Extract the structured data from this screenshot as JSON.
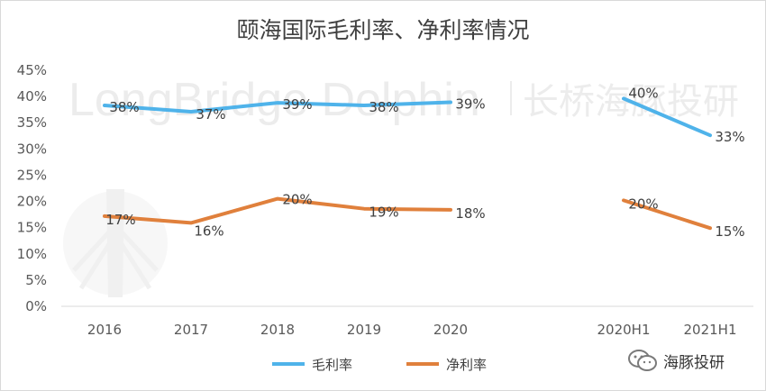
{
  "title": "颐海国际毛利率、净利率情况",
  "watermark": {
    "text_en": "LongBridge Dolphin",
    "text_cn": "长桥海豚投研"
  },
  "badge": {
    "text": "海豚投研",
    "icon": "wechat-icon"
  },
  "colors": {
    "gross": "#4fb3ea",
    "net": "#e0803c"
  },
  "chart_data": {
    "type": "line",
    "categories": [
      "2016",
      "2017",
      "2018",
      "2019",
      "2020",
      "",
      "2020H1",
      "2021H1"
    ],
    "y_ticks": [
      "0%",
      "5%",
      "10%",
      "15%",
      "20%",
      "25%",
      "30%",
      "35%",
      "40%",
      "45%"
    ],
    "ylim": [
      0,
      45
    ],
    "grid": false,
    "legend": "bottom",
    "series": [
      {
        "name": "毛利率",
        "color": "#4fb3ea",
        "values": [
          38.3,
          37.1,
          38.8,
          38.3,
          38.9,
          null,
          39.6,
          32.6
        ],
        "labels": [
          "38%",
          "37%",
          "39%",
          "38%",
          "39%",
          "",
          "40%",
          "33%"
        ]
      },
      {
        "name": "净利率",
        "color": "#e0803c",
        "values": [
          17.2,
          15.9,
          20.5,
          18.6,
          18.4,
          null,
          20.2,
          14.9
        ],
        "labels": [
          "17%",
          "16%",
          "20%",
          "19%",
          "18%",
          "",
          "20%",
          "15%"
        ]
      }
    ]
  }
}
